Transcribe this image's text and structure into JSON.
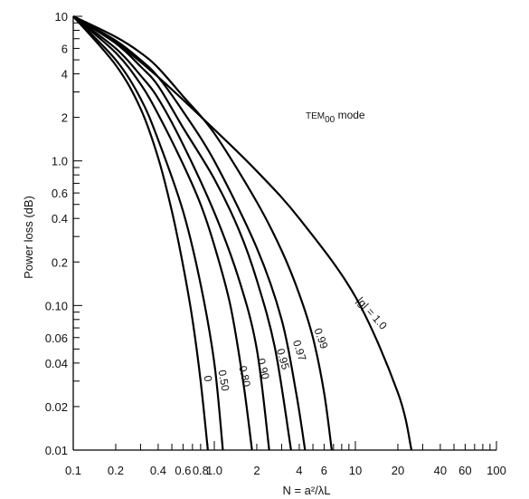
{
  "chart_data": {
    "type": "line",
    "x_scale": "log",
    "y_scale": "log",
    "xlim": [
      0.1,
      100
    ],
    "ylim": [
      0.01,
      10
    ],
    "grid": false,
    "xlabel": "N = a²/λL",
    "ylabel": "Power loss (dB)",
    "annotation": {
      "prefix": "TEM",
      "subscript": "00",
      "suffix": " mode"
    },
    "x_tick_labels": [
      {
        "value": 0.1,
        "label": "0.1"
      },
      {
        "value": 0.2,
        "label": "0.2"
      },
      {
        "value": 0.4,
        "label": "0.4"
      },
      {
        "value": 0.6,
        "label": "0.6"
      },
      {
        "value": 0.8,
        "label": "0.8"
      },
      {
        "value": 1.0,
        "label": "1.0"
      },
      {
        "value": 2,
        "label": "2"
      },
      {
        "value": 4,
        "label": "4"
      },
      {
        "value": 6,
        "label": "6"
      },
      {
        "value": 10,
        "label": "10"
      },
      {
        "value": 20,
        "label": "20"
      },
      {
        "value": 40,
        "label": "40"
      },
      {
        "value": 60,
        "label": "60"
      },
      {
        "value": 100,
        "label": "100"
      }
    ],
    "y_tick_labels": [
      {
        "value": 0.01,
        "label": "0.01"
      },
      {
        "value": 0.02,
        "label": "0.02"
      },
      {
        "value": 0.04,
        "label": "0.04"
      },
      {
        "value": 0.06,
        "label": "0.06"
      },
      {
        "value": 0.1,
        "label": "0.10"
      },
      {
        "value": 0.2,
        "label": "0.2"
      },
      {
        "value": 0.4,
        "label": "0.4"
      },
      {
        "value": 0.6,
        "label": "0.6"
      },
      {
        "value": 1.0,
        "label": "1.0"
      },
      {
        "value": 2,
        "label": "2"
      },
      {
        "value": 4,
        "label": "4"
      },
      {
        "value": 6,
        "label": "6"
      },
      {
        "value": 10,
        "label": "10"
      }
    ],
    "series": [
      {
        "name": "0",
        "label_pos": {
          "x": 0.85,
          "y": 0.031
        },
        "label_rotation": 82,
        "points": [
          [
            0.1,
            10
          ],
          [
            0.2,
            4.6
          ],
          [
            0.3,
            2.3
          ],
          [
            0.4,
            1.05
          ],
          [
            0.5,
            0.45
          ],
          [
            0.6,
            0.19
          ],
          [
            0.7,
            0.08
          ],
          [
            0.8,
            0.03
          ],
          [
            0.9,
            0.01
          ]
        ]
      },
      {
        "name": "0.50",
        "label_pos": {
          "x": 1.1,
          "y": 0.03
        },
        "label_rotation": 80,
        "points": [
          [
            0.1,
            10
          ],
          [
            0.2,
            5.0
          ],
          [
            0.3,
            2.7
          ],
          [
            0.4,
            1.4
          ],
          [
            0.6,
            0.45
          ],
          [
            0.8,
            0.14
          ],
          [
            1.0,
            0.04
          ],
          [
            1.15,
            0.01
          ]
        ]
      },
      {
        "name": "0.80",
        "label_pos": {
          "x": 1.55,
          "y": 0.032
        },
        "label_rotation": 78,
        "points": [
          [
            0.1,
            10
          ],
          [
            0.2,
            5.6
          ],
          [
            0.3,
            3.4
          ],
          [
            0.4,
            2.1
          ],
          [
            0.6,
            0.95
          ],
          [
            0.8,
            0.5
          ],
          [
            1.0,
            0.26
          ],
          [
            1.3,
            0.1
          ],
          [
            1.6,
            0.03
          ],
          [
            1.85,
            0.01
          ]
        ]
      },
      {
        "name": "0.90",
        "label_pos": {
          "x": 2.1,
          "y": 0.036
        },
        "label_rotation": 76,
        "points": [
          [
            0.1,
            10
          ],
          [
            0.2,
            6.0
          ],
          [
            0.3,
            3.9
          ],
          [
            0.4,
            2.7
          ],
          [
            0.6,
            1.3
          ],
          [
            1.0,
            0.44
          ],
          [
            1.5,
            0.15
          ],
          [
            2.0,
            0.05
          ],
          [
            2.45,
            0.01
          ]
        ]
      },
      {
        "name": "0.95",
        "label_pos": {
          "x": 2.9,
          "y": 0.042
        },
        "label_rotation": 74,
        "points": [
          [
            0.1,
            10
          ],
          [
            0.2,
            6.5
          ],
          [
            0.3,
            4.5
          ],
          [
            0.4,
            3.3
          ],
          [
            0.6,
            1.7
          ],
          [
            1.0,
            0.75
          ],
          [
            1.5,
            0.33
          ],
          [
            2.0,
            0.15
          ],
          [
            2.7,
            0.05
          ],
          [
            3.5,
            0.01
          ]
        ]
      },
      {
        "name": "0.97",
        "label_pos": {
          "x": 3.8,
          "y": 0.048
        },
        "label_rotation": 72,
        "points": [
          [
            0.1,
            10
          ],
          [
            0.2,
            6.8
          ],
          [
            0.3,
            5.0
          ],
          [
            0.4,
            3.8
          ],
          [
            0.6,
            2.2
          ],
          [
            1.0,
            1.0
          ],
          [
            2.0,
            0.25
          ],
          [
            3.0,
            0.08
          ],
          [
            3.8,
            0.025
          ],
          [
            4.4,
            0.01
          ]
        ]
      },
      {
        "name": "0.99",
        "label_pos": {
          "x": 5.4,
          "y": 0.058
        },
        "label_rotation": 70,
        "points": [
          [
            0.1,
            10
          ],
          [
            0.2,
            7.2
          ],
          [
            0.3,
            5.6
          ],
          [
            0.4,
            4.4
          ],
          [
            0.6,
            2.8
          ],
          [
            1.0,
            1.55
          ],
          [
            2.0,
            0.52
          ],
          [
            3.0,
            0.24
          ],
          [
            4.0,
            0.12
          ],
          [
            5.0,
            0.06
          ],
          [
            6.0,
            0.025
          ],
          [
            6.8,
            0.01
          ]
        ]
      },
      {
        "name": "|g| = 1.0",
        "label_pos": {
          "x": 12.5,
          "y": 0.085
        },
        "label_rotation": 48,
        "points": [
          [
            0.1,
            10
          ],
          [
            0.2,
            6.6
          ],
          [
            0.4,
            3.8
          ],
          [
            1,
            1.65
          ],
          [
            2,
            0.85
          ],
          [
            4,
            0.4
          ],
          [
            10,
            0.115
          ],
          [
            20,
            0.025
          ],
          [
            25,
            0.01
          ]
        ]
      }
    ]
  }
}
